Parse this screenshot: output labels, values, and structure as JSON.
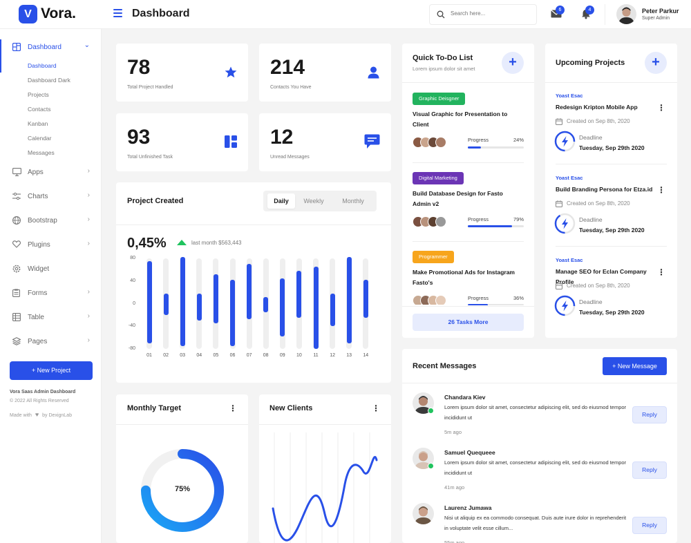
{
  "brand": {
    "logo_letter": "V",
    "name": "Vora.",
    "accent": "#2950e8"
  },
  "header": {
    "page_title": "Dashboard",
    "search_placeholder": "Search here...",
    "mail_badge": "6",
    "bell_badge": "4",
    "user_name": "Peter Parkur",
    "user_role": "Super Admin"
  },
  "sidebar": {
    "dashboard": {
      "label": "Dashboard",
      "icon": "grid-icon"
    },
    "sub_items": [
      "Dashboard",
      "Dashboard Dark",
      "Projects",
      "Contacts",
      "Kanban",
      "Calendar",
      "Messages"
    ],
    "items": [
      {
        "label": "Apps",
        "icon": "monitor-icon"
      },
      {
        "label": "Charts",
        "icon": "sliders-icon"
      },
      {
        "label": "Bootstrap",
        "icon": "globe-icon"
      },
      {
        "label": "Plugins",
        "icon": "heart-icon"
      },
      {
        "label": "Widget",
        "icon": "settings-icon"
      },
      {
        "label": "Forms",
        "icon": "clipboard-icon"
      },
      {
        "label": "Table",
        "icon": "table-icon"
      },
      {
        "label": "Pages",
        "icon": "layers-icon"
      }
    ],
    "new_project": "+ New Project",
    "footer_title": "Vora Saas Admin Dashboard",
    "footer_copy": "© 2022 All Rights Reserved",
    "footer_made": "Made with",
    "footer_by": "by DexignLab"
  },
  "stats": [
    {
      "value": "78",
      "label": "Total Project Handled",
      "icon": "star-icon"
    },
    {
      "value": "214",
      "label": "Contacts You Have",
      "icon": "user-icon"
    },
    {
      "value": "93",
      "label": "Total Unfinished Task",
      "icon": "layout-icon"
    },
    {
      "value": "12",
      "label": "Unread Messages",
      "icon": "chat-icon"
    }
  ],
  "project_created": {
    "title": "Project Created",
    "tabs": [
      "Daily",
      "Weekly",
      "Monthly"
    ],
    "active_tab": "Daily",
    "percent": "0,45%",
    "last_month": "last month $563,443"
  },
  "chart_data": {
    "type": "bar",
    "title": "Project Created",
    "categories": [
      "01",
      "02",
      "03",
      "04",
      "05",
      "06",
      "07",
      "08",
      "09",
      "10",
      "11",
      "12",
      "13",
      "14"
    ],
    "ranges": [
      [
        -70,
        75
      ],
      [
        -20,
        18
      ],
      [
        -75,
        82
      ],
      [
        -30,
        18
      ],
      [
        -35,
        52
      ],
      [
        -75,
        42
      ],
      [
        -28,
        70
      ],
      [
        -15,
        12
      ],
      [
        -58,
        45
      ],
      [
        -25,
        58
      ],
      [
        -80,
        65
      ],
      [
        -40,
        18
      ],
      [
        -70,
        82
      ],
      [
        -25,
        42
      ]
    ],
    "yticks": [
      "80",
      "40",
      "0",
      "-40",
      "-80"
    ],
    "ylim": [
      -80,
      80
    ]
  },
  "monthly_target": {
    "title": "Monthly Target",
    "percent": "75%",
    "value": 0.75
  },
  "new_clients": {
    "title": "New Clients"
  },
  "todo": {
    "title": "Quick To-Do List",
    "subtitle": "Lorem ipsum dolor sit amet",
    "items": [
      {
        "tag": "Graphic Deisgner",
        "tag_color": "#22b35e",
        "title": "Visual Graphic for Presentation to Client",
        "progress_label": "Progress",
        "percent": "24%",
        "value": 0.24
      },
      {
        "tag": "Digital Marketing",
        "tag_color": "#6b35b5",
        "title": "Build Database Design for Fasto Admin v2",
        "progress_label": "Progress",
        "percent": "79%",
        "value": 0.79
      },
      {
        "tag": "Programmer",
        "tag_color": "#f7a51c",
        "title": "Make Promotional Ads for Instagram Fasto's",
        "progress_label": "Progress",
        "percent": "36%",
        "value": 0.36
      }
    ],
    "more": "26 Tasks More"
  },
  "upcoming": {
    "title": "Upcoming Projects",
    "items": [
      {
        "client": "Yoast Esac",
        "title": "Redesign Kripton Mobile App",
        "created": "Created on Sep 8th, 2020",
        "deadline_label": "Deadline",
        "deadline": "Tuesday, Sep 29th 2020"
      },
      {
        "client": "Yoast Esac",
        "title": "Build Branding Persona for Etza.id",
        "created": "Created on Sep 8th, 2020",
        "deadline_label": "Deadline",
        "deadline": "Tuesday, Sep 29th 2020"
      },
      {
        "client": "Yoast Esac",
        "title": "Manage SEO for Eclan Company Profile",
        "created": "Created on Sep 8th, 2020",
        "deadline_label": "Deadline",
        "deadline": "Tuesday, Sep 29th 2020"
      }
    ]
  },
  "messages": {
    "title": "Recent Messages",
    "new_button": "+ New Message",
    "items": [
      {
        "name": "Chandara Kiev",
        "text": "Lorem ipsum dolor sit amet, consectetur adipiscing elit, sed do eiusmod tempor incididunt ut",
        "time": "5m ago",
        "reply": "Reply"
      },
      {
        "name": "Samuel Quequeee",
        "text": "Lorem ipsum dolor sit amet, consectetur adipiscing elit, sed do eiusmod tempor incididunt ut",
        "time": "41m ago",
        "reply": "Reply"
      },
      {
        "name": "Laurenz Jumawa",
        "text": "Nisi ut aliquip ex ea commodo consequat. Duis aute irure dolor in reprehenderit in voluptate velit esse cillum...",
        "time": "55m ago",
        "reply": "Reply"
      }
    ]
  }
}
